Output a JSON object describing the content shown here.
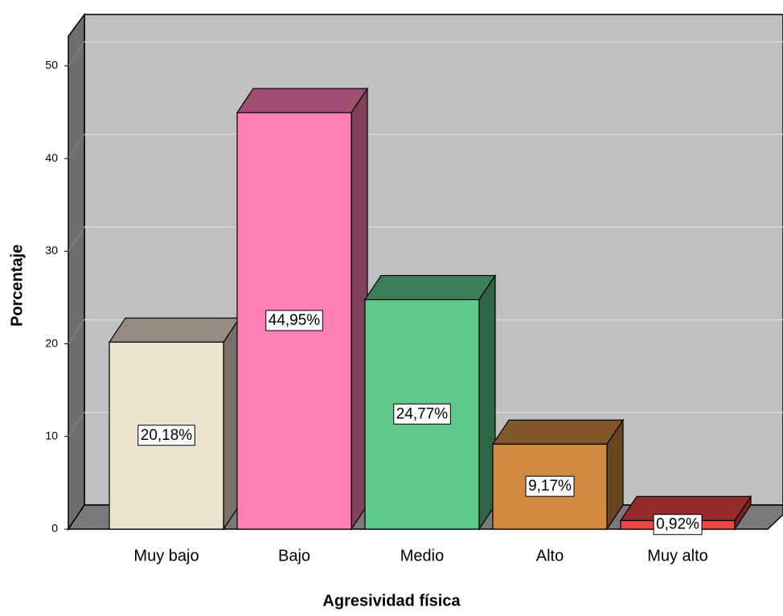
{
  "chart_data": {
    "type": "bar3d",
    "x_label": "Agresividad física",
    "y_label": "Porcentaje",
    "categories": [
      "Muy bajo",
      "Bajo",
      "Medio",
      "Alto",
      "Muy alto"
    ],
    "values": [
      20.18,
      44.95,
      24.77,
      9.17,
      0.92
    ],
    "value_labels": [
      "20,18%",
      "44,95%",
      "24,77%",
      "9,17%",
      "0,92%"
    ],
    "colors": [
      "#ece4cf",
      "#ff80b4",
      "#5ec98a",
      "#d08a40",
      "#ee4444"
    ],
    "ylim": [
      0,
      53.2
    ],
    "yticks": [
      0,
      10,
      20,
      30,
      40,
      50
    ],
    "grid": true
  }
}
